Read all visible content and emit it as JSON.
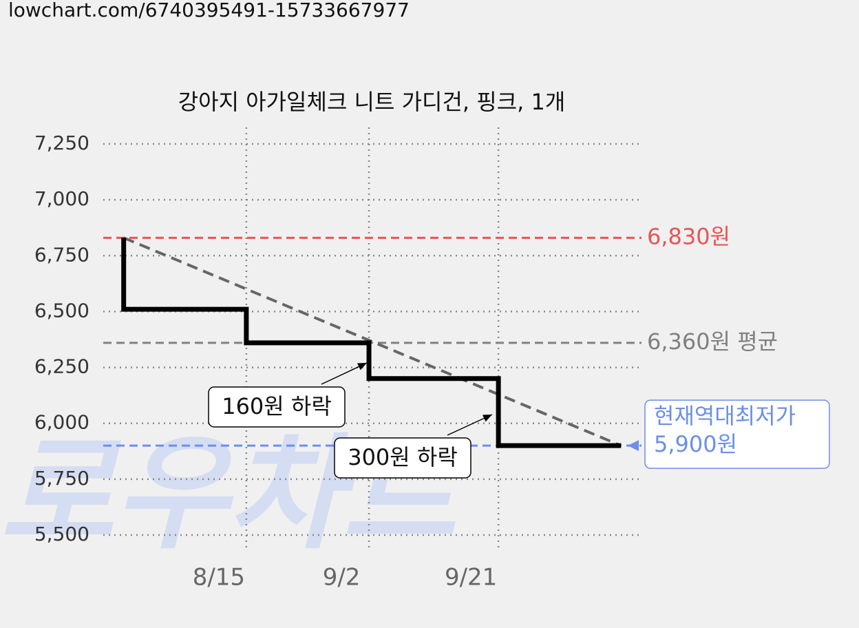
{
  "url": "lowchart.com/6740395491-15733667977",
  "watermark": "로우차트",
  "chart_data": {
    "type": "step-line",
    "title": "강아지 아가일체크 니트 가디건, 핑크, 1개",
    "x": [
      "7/28",
      "7/28",
      "8/15",
      "9/2",
      "9/21",
      "10/9"
    ],
    "series": [
      {
        "color": "#000000",
        "values": [
          6830,
          6510,
          6360,
          6200,
          5900,
          5900
        ]
      }
    ],
    "xlim": [
      "7/25",
      "10/12"
    ],
    "xticks": [
      "8/15",
      "9/2",
      "9/21"
    ],
    "ylim": [
      5500,
      7250
    ],
    "yticks": [
      {
        "value": 5500,
        "label": "5,500"
      },
      {
        "value": 5750,
        "label": "5,750"
      },
      {
        "value": 6000,
        "label": "6,000"
      },
      {
        "value": 6250,
        "label": "6,250"
      },
      {
        "value": 6500,
        "label": "6,500"
      },
      {
        "value": 6750,
        "label": "6,750"
      },
      {
        "value": 7000,
        "label": "7,000"
      },
      {
        "value": 7250,
        "label": "7,250"
      }
    ],
    "grid": true,
    "trend_line": true,
    "reference_lines": [
      {
        "value": 6830,
        "label": "6,830원",
        "color": "#e85555"
      },
      {
        "value": 6360,
        "label": "6,360원 평균",
        "color": "#808080"
      },
      {
        "value": 5900,
        "label": "5,900원",
        "note": "현재역대최저가",
        "color": "#6b8fe8"
      }
    ],
    "annotations": [
      "160원 하락",
      "300원 하락"
    ]
  }
}
